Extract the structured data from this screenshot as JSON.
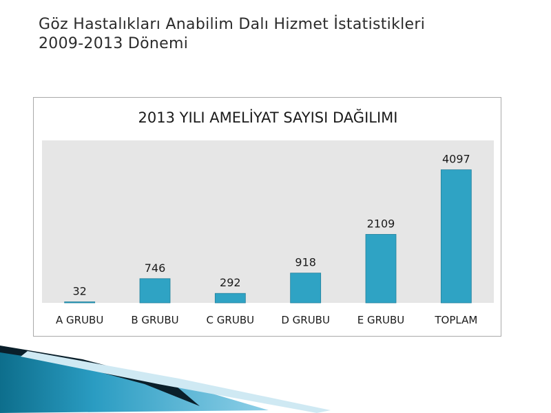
{
  "slide": {
    "title_line1": "Göz Hastalıkları Anabilim Dalı Hizmet İstatistikleri",
    "title_line2": "2009-2013 Dönemi"
  },
  "colors": {
    "bar": "#2fa3c4",
    "bar_stroke": "#23819c",
    "plot_background": "#e6e6e6",
    "text": "#1a1a1a",
    "decor_dark": "#0d6e8c",
    "decor_light": "#8fd0e8"
  },
  "chart_data": {
    "type": "bar",
    "title": "2013 YILI AMELİYAT SAYISI DAĞILIMI",
    "categories": [
      "A GRUBU",
      "B GRUBU",
      "C GRUBU",
      "D GRUBU",
      "E GRUBU",
      "TOPLAM"
    ],
    "values": [
      32,
      746,
      292,
      918,
      2109,
      4097
    ],
    "data_labels": [
      "32",
      "746",
      "292",
      "918",
      "2109",
      "4097"
    ],
    "xlabel": "",
    "ylabel": "",
    "ylim": [
      0,
      5000
    ],
    "grid": false,
    "legend": "none"
  }
}
